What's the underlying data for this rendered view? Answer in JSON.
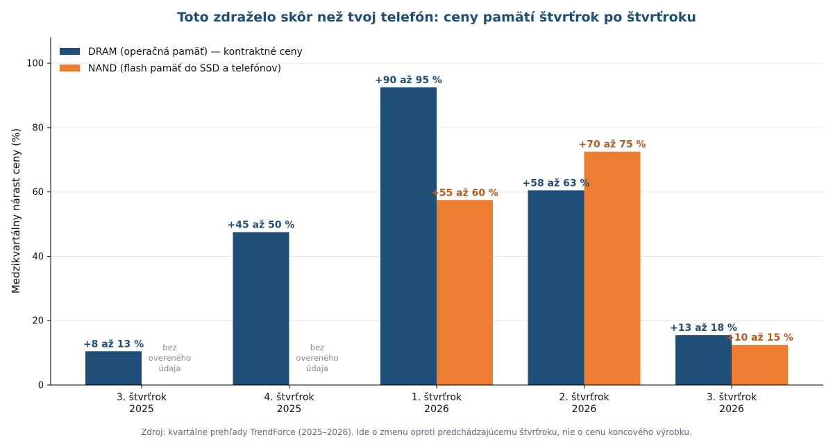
{
  "chart_data": {
    "type": "bar",
    "title": "Toto zdraželo skôr než tvoj telefón: ceny pamätí štvrťrok po štvrťroku",
    "ylabel": "Medzikvartálny nárast ceny (%)",
    "xlabel": "",
    "ylim": [
      0,
      108
    ],
    "yticks": [
      0,
      20,
      40,
      60,
      80,
      100
    ],
    "grid": "horizontal",
    "legend_position": "top-left",
    "categories": [
      [
        "3. štvrťrok",
        "2025"
      ],
      [
        "4. štvrťrok",
        "2025"
      ],
      [
        "1. štvrťrok",
        "2026"
      ],
      [
        "2. štvrťrok",
        "2026"
      ],
      [
        "3. štvrťrok",
        "2026"
      ]
    ],
    "series": [
      {
        "name": "DRAM (operačná pamäť) — kontraktné ceny",
        "color": "#1f4e79",
        "values": [
          10.5,
          47.5,
          92.5,
          60.5,
          15.5
        ],
        "labels": [
          "+8 až 13 %",
          "+45 až 50 %",
          "+90 až 95 %",
          "+58 až 63 %",
          "+13 až 18 %"
        ]
      },
      {
        "name": "NAND (flash pamäť do SSD a telefónov)",
        "color": "#ed7d31",
        "label_color": "#b35c1e",
        "values": [
          null,
          null,
          57.5,
          72.5,
          12.5
        ],
        "labels": [
          "",
          "",
          "+55 až 60 %",
          "+70 až 75 %",
          "+10 až 15 %"
        ]
      }
    ],
    "missing_label": [
      "bez",
      "overeného",
      "údaja"
    ],
    "source": "Zdroj: kvartálne prehľady TrendForce (2025–2026). Ide o zmenu oproti predchádzajúcemu štvrťroku, nie o cenu koncového výrobku."
  }
}
